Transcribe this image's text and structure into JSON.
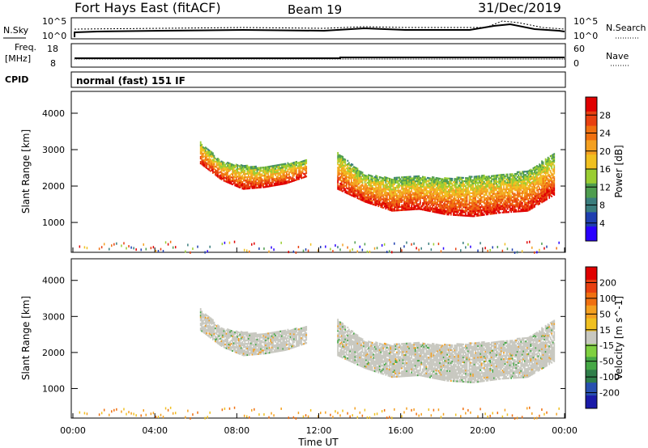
{
  "header": {
    "station": "Fort Hays East (fitACF)",
    "beam": "Beam 19",
    "date": "31/Dec/2019"
  },
  "strips": {
    "nsky_label": "N.Sky",
    "nsky_ticks": [
      "10^5",
      "10^0"
    ],
    "nsearch_label": "N.Search",
    "nsearch_ticks": [
      "10^5",
      "10^0"
    ],
    "freq_label_1": "Freq.",
    "freq_label_2": "[MHz]",
    "freq_ticks": [
      "18",
      "8"
    ],
    "nave_label": "Nave",
    "nave_ticks": [
      "60",
      "0"
    ],
    "cpid_label": "CPID",
    "cpid_text": "normal (fast) 151 IF"
  },
  "power_panel": {
    "ylabel": "Slant Range [km]",
    "yticks": [
      "1000",
      "2000",
      "3000",
      "4000"
    ],
    "colorbar_label": "Power [dB]",
    "colorbar_ticks": [
      "4",
      "8",
      "12",
      "16",
      "20",
      "24",
      "28"
    ],
    "colorbar_colors": [
      "#2a00ff",
      "#1f3fb0",
      "#3a7d7d",
      "#4f9d4f",
      "#9acd32",
      "#f0c020",
      "#f4a020",
      "#f07010",
      "#e84010",
      "#e00000"
    ]
  },
  "velocity_panel": {
    "ylabel": "Slant Range [km]",
    "yticks": [
      "1000",
      "2000",
      "3000",
      "4000"
    ],
    "colorbar_label": "Velocity [m s^-1]",
    "colorbar_ticks": [
      "200",
      "100",
      "50",
      "15",
      "-15",
      "-50",
      "-100",
      "-200"
    ],
    "colorbar_colors": [
      "#1a1aa8",
      "#2850b0",
      "#2f7e4a",
      "#45a845",
      "#7fd040",
      "#c8c8c0",
      "#f0c020",
      "#f4a020",
      "#f07010",
      "#e84010",
      "#e00000"
    ]
  },
  "x_axis": {
    "ticks": [
      "00:00",
      "04:00",
      "08:00",
      "12:00",
      "16:00",
      "20:00",
      "00:00"
    ],
    "label": "Time UT"
  },
  "chart_data": {
    "type": "heatmap",
    "title": "Fort Hays East (fitACF) Beam 19 31/Dec/2019",
    "xlabel": "Time UT",
    "ylabel": "Slant Range [km]",
    "xlim_hours": [
      0,
      24
    ],
    "ylim_km": [
      180,
      4600
    ],
    "power_scale_db": [
      0,
      30
    ],
    "velocity_scale_ms": [
      -250,
      250
    ],
    "echo_bands": [
      {
        "t_start_h": 6.2,
        "t_end_h": 11.4,
        "range_top_km": [
          3200,
          2650,
          2550,
          2500,
          2600,
          2700
        ],
        "range_bottom_km": [
          2600,
          2150,
          1900,
          1950,
          2050,
          2250
        ],
        "peak_power_db": 28,
        "velocity_ms": 0
      },
      {
        "t_start_h": 12.9,
        "t_end_h": 23.5,
        "range_top_km": [
          2900,
          2300,
          2200,
          2250,
          2200,
          2250,
          2300,
          2400,
          2900
        ],
        "range_bottom_km": [
          1900,
          1550,
          1300,
          1350,
          1200,
          1150,
          1250,
          1300,
          1750
        ],
        "peak_power_db": 28,
        "velocity_ms": 0
      }
    ],
    "near_range_clutter_km": [
      200,
      500
    ]
  }
}
